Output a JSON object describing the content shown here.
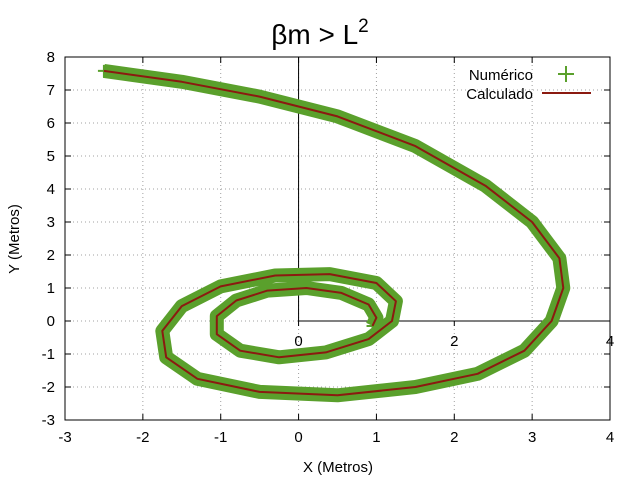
{
  "chart_data": {
    "type": "line",
    "title": "βm > L",
    "title_superscript": "2",
    "xlabel": "X (Metros)",
    "ylabel": "Y (Metros)",
    "xlim": [
      -3,
      4
    ],
    "ylim": [
      -3,
      8
    ],
    "xticks": [
      "-3",
      "-2",
      "-1",
      "0",
      "1",
      "2",
      "3",
      "4"
    ],
    "yticks": [
      "-3",
      "-2",
      "-1",
      "0",
      "1",
      "2",
      "3",
      "4",
      "5",
      "6",
      "7",
      "8"
    ],
    "inner_xticks": [
      "0",
      "2",
      "4"
    ],
    "grid": true,
    "legend_position": "top-right",
    "series": [
      {
        "name": "Numérico",
        "color": "#5aa02c",
        "marker": "plus",
        "points": [
          [
            -2.5,
            7.58
          ],
          [
            -1.5,
            7.25
          ],
          [
            -0.5,
            6.8
          ],
          [
            0.5,
            6.2
          ],
          [
            1.5,
            5.3
          ],
          [
            2.4,
            4.1
          ],
          [
            3.0,
            3.0
          ],
          [
            3.35,
            1.9
          ],
          [
            3.4,
            1.0
          ],
          [
            3.25,
            0.0
          ],
          [
            2.9,
            -0.9
          ],
          [
            2.3,
            -1.6
          ],
          [
            1.5,
            -2.0
          ],
          [
            0.5,
            -2.25
          ],
          [
            -0.5,
            -2.15
          ],
          [
            -1.3,
            -1.75
          ],
          [
            -1.7,
            -1.1
          ],
          [
            -1.75,
            -0.3
          ],
          [
            -1.5,
            0.45
          ],
          [
            -1.0,
            1.05
          ],
          [
            -0.3,
            1.38
          ],
          [
            0.4,
            1.42
          ],
          [
            1.0,
            1.15
          ],
          [
            1.25,
            0.6
          ],
          [
            1.2,
            0.0
          ],
          [
            0.9,
            -0.55
          ],
          [
            0.35,
            -0.95
          ],
          [
            -0.25,
            -1.1
          ],
          [
            -0.75,
            -0.9
          ],
          [
            -1.05,
            -0.4
          ],
          [
            -1.05,
            0.15
          ],
          [
            -0.8,
            0.62
          ],
          [
            -0.4,
            0.92
          ],
          [
            0.1,
            1.0
          ],
          [
            0.55,
            0.85
          ],
          [
            0.9,
            0.5
          ],
          [
            1.0,
            0.1
          ],
          [
            0.95,
            -0.15
          ]
        ]
      },
      {
        "name": "Calculado",
        "color": "#8b1a10",
        "marker": "line",
        "points": [
          [
            -2.5,
            7.58
          ],
          [
            -1.5,
            7.25
          ],
          [
            -0.5,
            6.8
          ],
          [
            0.5,
            6.2
          ],
          [
            1.5,
            5.3
          ],
          [
            2.4,
            4.1
          ],
          [
            3.0,
            3.0
          ],
          [
            3.35,
            1.9
          ],
          [
            3.4,
            1.0
          ],
          [
            3.25,
            0.0
          ],
          [
            2.9,
            -0.9
          ],
          [
            2.3,
            -1.6
          ],
          [
            1.5,
            -2.0
          ],
          [
            0.5,
            -2.25
          ],
          [
            -0.5,
            -2.15
          ],
          [
            -1.3,
            -1.75
          ],
          [
            -1.7,
            -1.1
          ],
          [
            -1.75,
            -0.3
          ],
          [
            -1.5,
            0.45
          ],
          [
            -1.0,
            1.05
          ],
          [
            -0.3,
            1.38
          ],
          [
            0.4,
            1.42
          ],
          [
            1.0,
            1.15
          ],
          [
            1.25,
            0.6
          ],
          [
            1.2,
            0.0
          ],
          [
            0.9,
            -0.55
          ],
          [
            0.35,
            -0.95
          ],
          [
            -0.25,
            -1.1
          ],
          [
            -0.75,
            -0.9
          ],
          [
            -1.05,
            -0.4
          ],
          [
            -1.05,
            0.15
          ],
          [
            -0.8,
            0.62
          ],
          [
            -0.4,
            0.92
          ],
          [
            0.1,
            1.0
          ],
          [
            0.55,
            0.85
          ],
          [
            0.9,
            0.5
          ],
          [
            1.0,
            0.1
          ],
          [
            0.95,
            -0.15
          ]
        ]
      }
    ]
  }
}
